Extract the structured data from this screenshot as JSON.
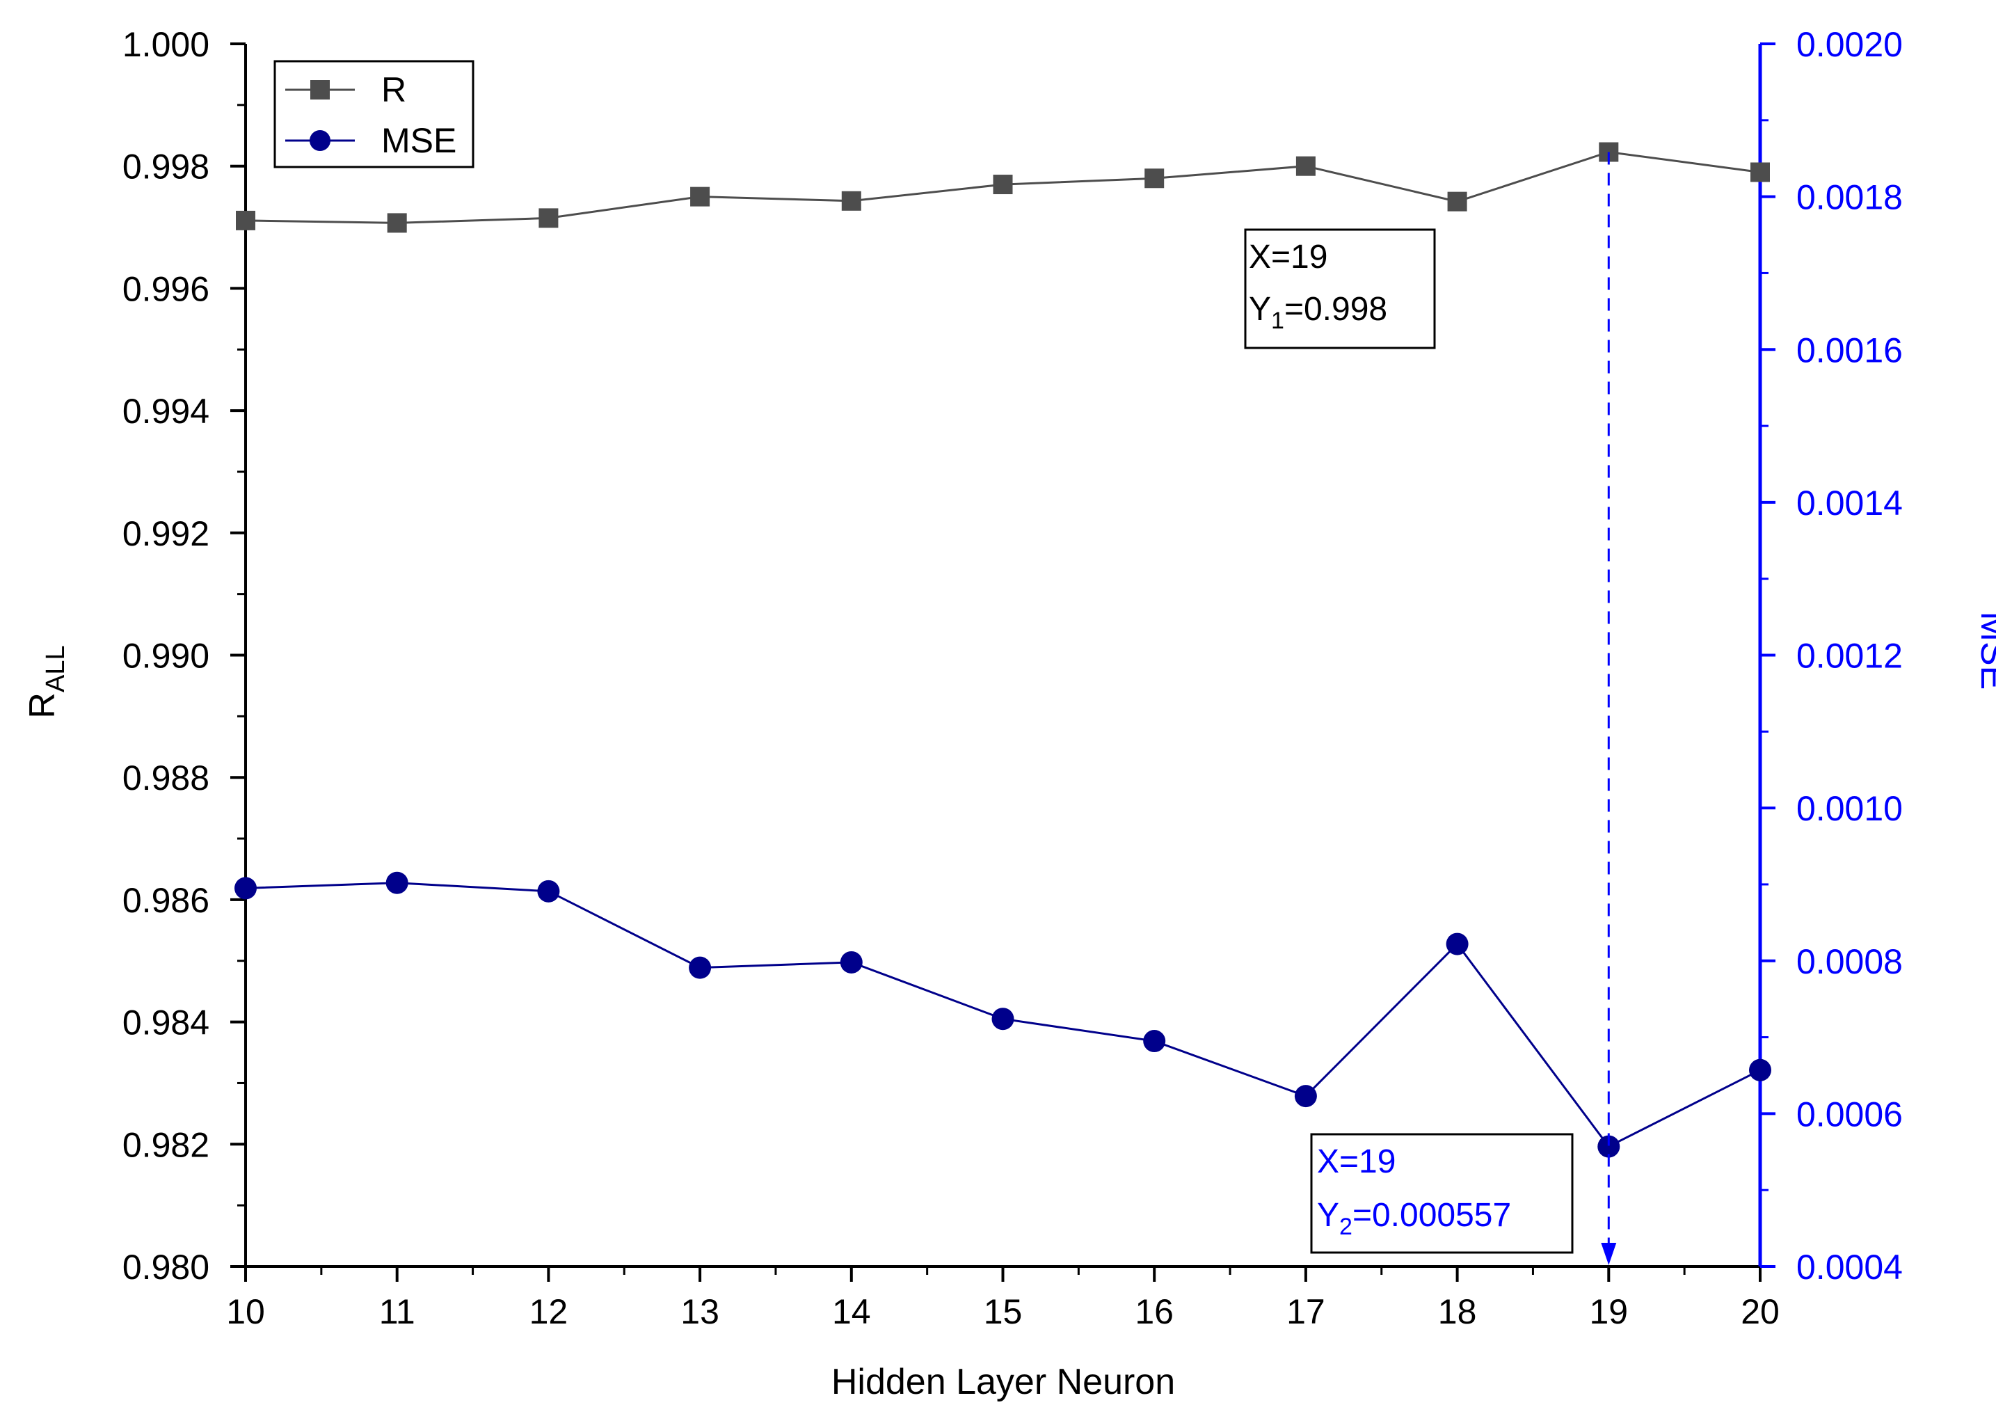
{
  "chart_data": {
    "type": "line",
    "title": "",
    "xlabel": "Hidden Layer Neuron",
    "ylabel_left": {
      "main": "R",
      "sub": "ALL"
    },
    "ylabel_right": "MSE",
    "x": [
      10,
      11,
      12,
      13,
      14,
      15,
      16,
      17,
      18,
      19,
      20
    ],
    "x_ticks": [
      "10",
      "11",
      "12",
      "13",
      "14",
      "15",
      "16",
      "17",
      "18",
      "19",
      "20"
    ],
    "xlim": [
      10,
      20
    ],
    "ylim_left": [
      0.98,
      1.0
    ],
    "ylim_right": [
      0.0004,
      0.002
    ],
    "y_left_ticks": [
      {
        "value": 0.98,
        "label": "0.980"
      },
      {
        "value": 0.982,
        "label": "0.982"
      },
      {
        "value": 0.984,
        "label": "0.984"
      },
      {
        "value": 0.986,
        "label": "0.986"
      },
      {
        "value": 0.988,
        "label": "0.988"
      },
      {
        "value": 0.99,
        "label": "0.990"
      },
      {
        "value": 0.992,
        "label": "0.992"
      },
      {
        "value": 0.994,
        "label": "0.994"
      },
      {
        "value": 0.996,
        "label": "0.996"
      },
      {
        "value": 0.998,
        "label": "0.998"
      },
      {
        "value": 1.0,
        "label": "1.000"
      }
    ],
    "y_right_ticks": [
      {
        "value": 0.0004,
        "label": "0.0004"
      },
      {
        "value": 0.0006,
        "label": "0.0006"
      },
      {
        "value": 0.0008,
        "label": "0.0008"
      },
      {
        "value": 0.001,
        "label": "0.0010"
      },
      {
        "value": 0.0012,
        "label": "0.0012"
      },
      {
        "value": 0.0014,
        "label": "0.0014"
      },
      {
        "value": 0.0016,
        "label": "0.0016"
      },
      {
        "value": 0.0018,
        "label": "0.0018"
      },
      {
        "value": 0.002,
        "label": "0.0020"
      }
    ],
    "series": [
      {
        "name": "R",
        "axis": "left",
        "marker": "square",
        "color": "#4d4d4d",
        "values": [
          0.99711,
          0.99707,
          0.99715,
          0.9975,
          0.99743,
          0.9977,
          0.9978,
          0.998,
          0.99742,
          0.99823,
          0.9979
        ]
      },
      {
        "name": "MSE",
        "axis": "right",
        "marker": "circle",
        "color": "#00008b",
        "values": [
          0.000895,
          0.000902,
          0.000891,
          0.000791,
          0.000798,
          0.000724,
          0.000695,
          0.000623,
          0.000822,
          0.000557,
          0.000657
        ]
      }
    ],
    "legend": {
      "position": "top-left",
      "entries": [
        "R",
        "MSE"
      ]
    },
    "annotations": [
      {
        "target": "R",
        "lines": [
          {
            "text": "X=19"
          },
          {
            "main": "Y",
            "sub": "1",
            "rest": "=0.998"
          }
        ],
        "color": "#000000"
      },
      {
        "target": "MSE",
        "lines": [
          {
            "text": "X=19"
          },
          {
            "main": "Y",
            "sub": "2",
            "rest": "=0.000557"
          }
        ],
        "color": "#0000ff"
      }
    ],
    "reference_line": {
      "x": 19,
      "style": "dashed",
      "color": "#0000ff",
      "arrow": "down"
    },
    "colors": {
      "left_axis": "#000000",
      "right_axis": "#0000ff",
      "r_series": "#4d4d4d",
      "mse_series": "#00008b"
    }
  }
}
